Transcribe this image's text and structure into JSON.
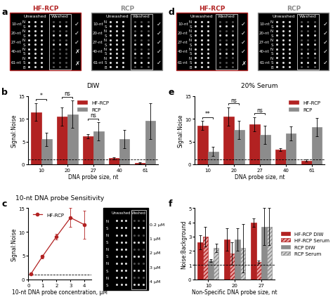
{
  "chart_data": [
    {
      "panel": "b",
      "type": "bar",
      "title": "DIW",
      "x_label": "DNA probe size, nt",
      "y_label": "Signal:Noise",
      "categories": [
        "10",
        "20",
        "27",
        "40",
        "61"
      ],
      "series": [
        {
          "name": "HF-RCP",
          "color": "#b22222",
          "values": [
            11.5,
            10.5,
            6.2,
            1.3,
            0.3
          ],
          "errors": [
            2.0,
            2.0,
            0.5,
            0.3,
            0.2
          ]
        },
        {
          "name": "RCP",
          "color": "#8c8c8c",
          "values": [
            5.5,
            11.0,
            7.2,
            5.5,
            9.5
          ],
          "errors": [
            1.5,
            3.0,
            2.0,
            2.0,
            4.0
          ]
        }
      ],
      "significance": [
        "*",
        "ns",
        "ns",
        null,
        null
      ],
      "threshold": 1,
      "ylim": [
        0,
        15
      ],
      "yticks": [
        0,
        5,
        10,
        15
      ],
      "legend": "upper center"
    },
    {
      "panel": "c",
      "type": "line",
      "title": "10-nt DNA probe Sensitivity",
      "x_label": "10-nt DNA probe concentration, µM",
      "y_label": "Signal:Noise",
      "x": [
        0.2,
        1,
        2,
        3,
        4
      ],
      "series": [
        {
          "name": "HF-RCP",
          "color": "#b22222",
          "marker": "o",
          "values": [
            1.2,
            4.8,
            9.0,
            13.0,
            11.5
          ],
          "errors": [
            0.2,
            0.4,
            0.6,
            2.0,
            3.0
          ]
        }
      ],
      "threshold": 1,
      "xlim": [
        0,
        4.5
      ],
      "xticks": [
        0,
        1,
        2,
        3,
        4
      ],
      "ylim": [
        0,
        15
      ],
      "yticks": [
        0,
        5,
        10,
        15
      ],
      "legend": "upper left"
    },
    {
      "panel": "e",
      "type": "bar",
      "title": "20% Serum",
      "x_label": "DNA probe size, nt",
      "y_label": "Signal:Noise",
      "categories": [
        "10",
        "20",
        "27",
        "40",
        "61"
      ],
      "series": [
        {
          "name": "HF-RCP",
          "color": "#b22222",
          "values": [
            8.5,
            10.5,
            8.8,
            3.2,
            0.8
          ],
          "errors": [
            1.0,
            2.0,
            1.5,
            0.3,
            0.2
          ]
        },
        {
          "name": "RCP",
          "color": "#8c8c8c",
          "values": [
            2.8,
            7.5,
            6.5,
            6.8,
            8.2
          ],
          "errors": [
            1.0,
            2.0,
            2.0,
            1.5,
            2.0
          ]
        }
      ],
      "significance": [
        "**",
        "ns",
        "ns",
        null,
        null
      ],
      "threshold": 1,
      "ylim": [
        0,
        15
      ],
      "yticks": [
        0,
        5,
        10,
        15
      ],
      "legend": "upper right"
    },
    {
      "panel": "f",
      "type": "bar",
      "x_label": "Non-Specific DNA probe size, nt",
      "y_label": "Noise:Background",
      "categories": [
        "10",
        "20",
        "27"
      ],
      "series": [
        {
          "name": "HF-RCP DIW",
          "color": "#b22222",
          "values": [
            2.6,
            2.8,
            4.0
          ],
          "errors": [
            0.5,
            0.8,
            0.3
          ]
        },
        {
          "name": "HF-RCP Serum",
          "color": "#e8a0a0",
          "values": [
            3.0,
            1.8,
            1.2
          ],
          "errors": [
            0.7,
            0.8,
            0.1
          ]
        },
        {
          "name": "RCP DIW",
          "color": "#8c8c8c",
          "values": [
            1.3,
            2.8,
            3.7
          ],
          "errors": [
            0.1,
            0.8,
            1.3
          ]
        },
        {
          "name": "RCP Serum",
          "color": "#d0d0d0",
          "values": [
            2.2,
            2.2,
            3.7
          ],
          "errors": [
            0.3,
            1.7,
            1.3
          ]
        }
      ],
      "threshold": 1,
      "ylim": [
        0,
        5
      ],
      "yticks": [
        0,
        1,
        2,
        3,
        4,
        5
      ],
      "legend": "right"
    }
  ],
  "blots": [
    {
      "panel": "a",
      "images": [
        {
          "title": "HF-RCP",
          "color": "#b22222",
          "columns": [
            "Unwashed",
            "Washed"
          ],
          "groups": [
            {
              "label": "10-nt",
              "rows": [
                "N",
                "S"
              ],
              "result": "✓"
            },
            {
              "label": "20-nt",
              "rows": [
                "N",
                "S"
              ],
              "result": "✓"
            },
            {
              "label": "27-nt",
              "rows": [
                "N",
                "S"
              ],
              "result": "✓"
            },
            {
              "label": "40-nt",
              "rows": [
                "N",
                "S"
              ],
              "result": "✗"
            },
            {
              "label": "61-nt",
              "rows": [
                "N",
                "S",
                "B"
              ],
              "result": "✗"
            }
          ]
        },
        {
          "title": "RCP",
          "color": "#8c8c8c",
          "columns": [
            "Unwashed",
            "Washed"
          ],
          "groups": [
            {
              "label": "10-nt",
              "rows": [
                "N",
                "S"
              ],
              "result": "✓"
            },
            {
              "label": "20-nt",
              "rows": [
                "N",
                "S"
              ],
              "result": "✓"
            },
            {
              "label": "27-nt",
              "rows": [
                "N",
                "S"
              ],
              "result": "✓"
            },
            {
              "label": "40-nt",
              "rows": [
                "N",
                "S"
              ],
              "result": "✓"
            },
            {
              "label": "61-nt",
              "rows": [
                "N",
                "S",
                "B"
              ],
              "result": "✓"
            }
          ]
        }
      ]
    },
    {
      "panel": "d",
      "images": [
        {
          "title": "HF-RCP",
          "color": "#b22222",
          "columns": [
            "Unwashed",
            "Washed"
          ],
          "groups": [
            {
              "label": "10-nt",
              "rows": [
                "N",
                "S"
              ],
              "result": "✓"
            },
            {
              "label": "20-nt",
              "rows": [
                "N",
                "S"
              ],
              "result": "✓"
            },
            {
              "label": "27-nt",
              "rows": [
                "N",
                "S"
              ],
              "result": "✓"
            },
            {
              "label": "40-nt",
              "rows": [
                "N",
                "S"
              ],
              "result": "✓"
            },
            {
              "label": "61-nt",
              "rows": [
                "N",
                "S",
                "B"
              ],
              "result": "✗"
            }
          ]
        },
        {
          "title": "RCP",
          "color": "#8c8c8c",
          "columns": [
            "Unwashed",
            "Washed"
          ],
          "groups": [
            {
              "label": "10-nt",
              "rows": [
                "N",
                "S"
              ],
              "result": "✓"
            },
            {
              "label": "20-nt",
              "rows": [
                "N",
                "S"
              ],
              "result": "✓"
            },
            {
              "label": "27-nt",
              "rows": [
                "N",
                "S"
              ],
              "result": "✓"
            },
            {
              "label": "40-nt",
              "rows": [
                "N",
                "S"
              ],
              "result": "✓"
            },
            {
              "label": "61-nt",
              "rows": [
                "N",
                "S",
                "B"
              ],
              "result": "✓"
            }
          ]
        }
      ]
    },
    {
      "panel": "c",
      "images": [
        {
          "columns": [
            "Unwashed",
            "Washed"
          ],
          "groups": [
            {
              "label": "0.2 µM",
              "rows": [
                "N",
                "S"
              ]
            },
            {
              "label": "1 µM",
              "rows": [
                "N",
                "S"
              ]
            },
            {
              "label": "2 µM",
              "rows": [
                "N",
                "S"
              ]
            },
            {
              "label": "3 µM",
              "rows": [
                "N",
                "S"
              ]
            },
            {
              "label": "4 µM",
              "rows": [
                "N",
                "S"
              ]
            }
          ]
        }
      ]
    }
  ]
}
